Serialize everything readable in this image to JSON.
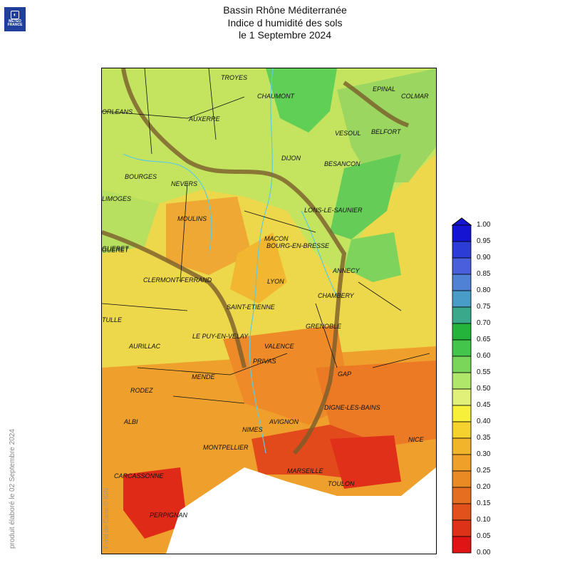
{
  "logo": {
    "line1": "METEO",
    "line2": "FRANCE",
    "glyph": "cloud-sun-icon"
  },
  "title": {
    "line1": "Bassin Rhône Méditerranée",
    "line2": "Indice d humidité des sols",
    "line3": "le 1 Septembre 2024"
  },
  "credit": "produit élaboré le 02 Septembre 2024",
  "credit2": "Fond de Carte © IGN",
  "cities": [
    {
      "name": "TROYES"
    },
    {
      "name": "CHAUMONT"
    },
    {
      "name": "EPINAL"
    },
    {
      "name": "COLMAR"
    },
    {
      "name": "ORLEANS"
    },
    {
      "name": "AUXERRE"
    },
    {
      "name": "VESOUL"
    },
    {
      "name": "BELFORT"
    },
    {
      "name": "DIJON"
    },
    {
      "name": "BESANCON"
    },
    {
      "name": "BOURGES"
    },
    {
      "name": "NEVERS"
    },
    {
      "name": "LONS-LE-SAUNIER"
    },
    {
      "name": "MOULINS"
    },
    {
      "name": "MACON"
    },
    {
      "name": "BOURG-EN-BRESSE"
    },
    {
      "name": "GUERET"
    },
    {
      "name": "ANNECY"
    },
    {
      "name": "CLERMONT-FERRAND"
    },
    {
      "name": "LYON"
    },
    {
      "name": "CHAMBERY"
    },
    {
      "name": "SAINT-ETIENNE"
    },
    {
      "name": "TULLE"
    },
    {
      "name": "GRENOBLE"
    },
    {
      "name": "LE PUY-EN-VELAY"
    },
    {
      "name": "AURILLAC"
    },
    {
      "name": "VALENCE"
    },
    {
      "name": "PRIVAS"
    },
    {
      "name": "GAP"
    },
    {
      "name": "MENDE"
    },
    {
      "name": "RODEZ"
    },
    {
      "name": "DIGNE-LES-BAINS"
    },
    {
      "name": "AVIGNON"
    },
    {
      "name": "NIMES"
    },
    {
      "name": "ALBI"
    },
    {
      "name": "MONTPELLIER"
    },
    {
      "name": "NICE"
    },
    {
      "name": "MARSEILLE"
    },
    {
      "name": "TOULON"
    },
    {
      "name": "CARCASSONNE"
    },
    {
      "name": "PERPIGNAN"
    },
    {
      "name": "GUERET"
    },
    {
      "name": "LIMOGES"
    }
  ],
  "legend": {
    "ticks": [
      "1.00",
      "0.95",
      "0.90",
      "0.85",
      "0.80",
      "0.75",
      "0.70",
      "0.65",
      "0.60",
      "0.55",
      "0.50",
      "0.45",
      "0.40",
      "0.35",
      "0.30",
      "0.25",
      "0.20",
      "0.15",
      "0.10",
      "0.05",
      "0.00"
    ],
    "colors": [
      "#1414d2",
      "#2c3cd6",
      "#4a5fdc",
      "#4f82d4",
      "#4a9cc8",
      "#3aa88a",
      "#24b43c",
      "#42c54a",
      "#7ad65a",
      "#b0e66a",
      "#e0f078",
      "#f6f03a",
      "#f6d22e",
      "#f2b42a",
      "#eea028",
      "#ea8a24",
      "#e66e20",
      "#e2501c",
      "#de3218",
      "#e01414"
    ]
  }
}
